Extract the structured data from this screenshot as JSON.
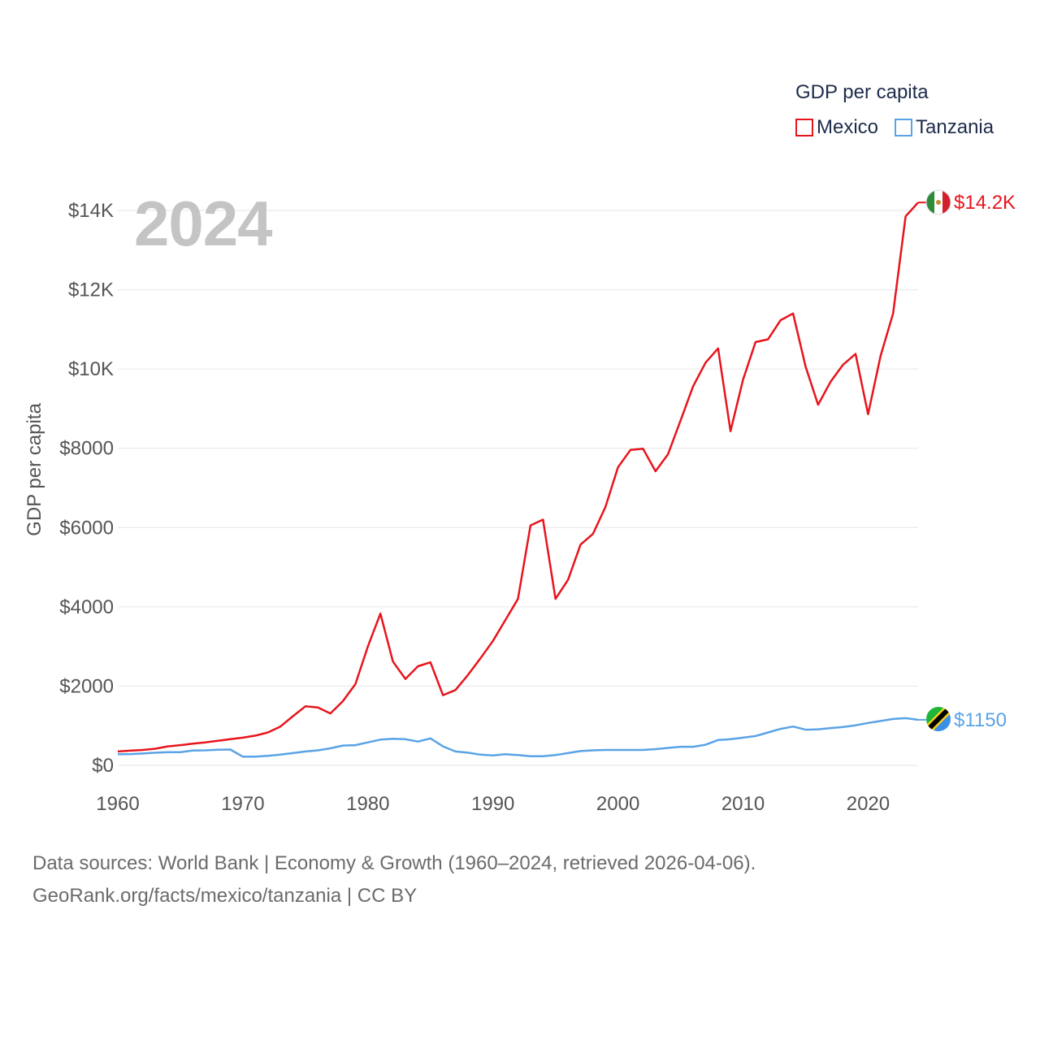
{
  "legend": {
    "title": "GDP per capita",
    "items": [
      {
        "label": "Mexico",
        "color": "#e8141c"
      },
      {
        "label": "Tanzania",
        "color": "#5aa3e6"
      }
    ]
  },
  "year_watermark": "2024",
  "footer": {
    "line1": "Data sources: World Bank | Economy & Growth (1960–2024, retrieved 2026-04-06).",
    "line2": "GeoRank.org/facts/mexico/tanzania | CC BY"
  },
  "chart_data": {
    "type": "line",
    "title": "",
    "xlabel": "",
    "ylabel": "GDP per capita",
    "xlim": [
      1960,
      2024
    ],
    "ylim": [
      0,
      14000
    ],
    "x_ticks": [
      1960,
      1970,
      1980,
      1990,
      2000,
      2010,
      2020
    ],
    "x_tick_labels": [
      "1960",
      "1970",
      "1980",
      "1990",
      "2000",
      "2010",
      "2020"
    ],
    "y_ticks": [
      0,
      2000,
      4000,
      6000,
      8000,
      10000,
      12000,
      14000
    ],
    "y_tick_labels": [
      "$0",
      "$2000",
      "$4000",
      "$6000",
      "$8000",
      "$10K",
      "$12K",
      "$14K"
    ],
    "grid": true,
    "legend_position": "top-right",
    "x": [
      1960,
      1961,
      1962,
      1963,
      1964,
      1965,
      1966,
      1967,
      1968,
      1969,
      1970,
      1971,
      1972,
      1973,
      1974,
      1975,
      1976,
      1977,
      1978,
      1979,
      1980,
      1981,
      1982,
      1983,
      1984,
      1985,
      1986,
      1987,
      1988,
      1989,
      1990,
      1991,
      1992,
      1993,
      1994,
      1995,
      1996,
      1997,
      1998,
      1999,
      2000,
      2001,
      2002,
      2003,
      2004,
      2005,
      2006,
      2007,
      2008,
      2009,
      2010,
      2011,
      2012,
      2013,
      2014,
      2015,
      2016,
      2017,
      2018,
      2019,
      2020,
      2021,
      2022,
      2023,
      2024
    ],
    "series": [
      {
        "name": "Mexico",
        "color": "#e8141c",
        "end_label": "$14.2K",
        "values": [
          350,
          370,
          390,
          420,
          480,
          510,
          550,
          580,
          620,
          660,
          700,
          750,
          830,
          980,
          1240,
          1490,
          1460,
          1310,
          1620,
          2050,
          3000,
          3830,
          2620,
          2180,
          2500,
          2600,
          1770,
          1900,
          2280,
          2700,
          3140,
          3670,
          4200,
          6050,
          6200,
          4200,
          4680,
          5570,
          5840,
          6520,
          7520,
          7960,
          7990,
          7420,
          7850,
          8700,
          9560,
          10160,
          10520,
          8430,
          9730,
          10680,
          10750,
          11230,
          11400,
          10060,
          9100,
          9680,
          10110,
          10380,
          8860,
          10330,
          11400,
          13850,
          14200
        ]
      },
      {
        "name": "Tanzania",
        "color": "#5aa3e6",
        "end_label": "$1150",
        "values": [
          280,
          285,
          300,
          320,
          335,
          335,
          375,
          380,
          395,
          400,
          220,
          220,
          240,
          270,
          310,
          350,
          380,
          430,
          500,
          510,
          580,
          650,
          670,
          660,
          600,
          680,
          480,
          350,
          320,
          270,
          250,
          280,
          260,
          230,
          230,
          260,
          310,
          360,
          380,
          390,
          390,
          390,
          390,
          410,
          440,
          470,
          470,
          520,
          640,
          660,
          700,
          740,
          830,
          920,
          980,
          900,
          910,
          940,
          970,
          1010,
          1070,
          1120,
          1170,
          1190,
          1150
        ]
      }
    ]
  }
}
